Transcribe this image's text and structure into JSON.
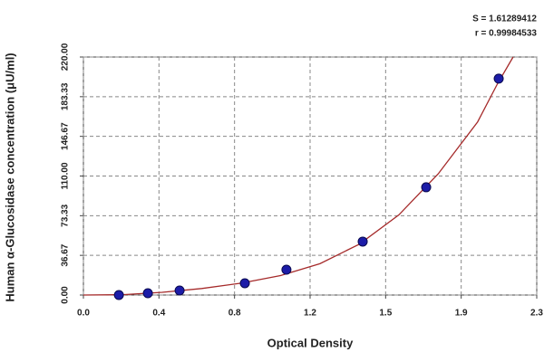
{
  "chart_data": {
    "type": "scatter",
    "x_label": "Optical Density",
    "y_label": "Human α-Glucosidase concentration (μU/ml)",
    "annotations": [
      "S = 1.61289412",
      "r = 0.99984533"
    ],
    "xlim": [
      0,
      2.3
    ],
    "xticks": [
      {
        "value": 0,
        "label": "0.0"
      },
      {
        "value": 0.3833,
        "label": "0.4"
      },
      {
        "value": 0.7667,
        "label": "0.8"
      },
      {
        "value": 1.15,
        "label": "1.2"
      },
      {
        "value": 1.5333,
        "label": "1.5"
      },
      {
        "value": 1.9167,
        "label": "1.9"
      },
      {
        "value": 2.3,
        "label": "2.3"
      }
    ],
    "ylim": [
      0,
      220
    ],
    "yticks": [
      {
        "value": 0,
        "label": "0.00"
      },
      {
        "value": 36.67,
        "label": "36.67"
      },
      {
        "value": 73.33,
        "label": "73.33"
      },
      {
        "value": 110,
        "label": "110.00"
      },
      {
        "value": 146.67,
        "label": "146.67"
      },
      {
        "value": 183.33,
        "label": "183.33"
      },
      {
        "value": 220,
        "label": "220.00"
      }
    ],
    "grid": true,
    "points": {
      "color": "#1c1ca8",
      "x": [
        0.18,
        0.327,
        0.488,
        0.819,
        1.03,
        1.417,
        1.739,
        2.107
      ],
      "values": [
        0,
        1.7,
        4.2,
        10.9,
        23.4,
        49.4,
        99.6,
        200
      ]
    },
    "curve": {
      "color": "#a52a2a",
      "x": [
        0,
        0.2,
        0.4,
        0.6,
        0.8,
        1.0,
        1.2,
        1.4,
        1.6,
        1.8,
        2.0,
        2.1,
        2.18
      ],
      "values": [
        0,
        0.3,
        2.5,
        6,
        11,
        18,
        29,
        47,
        74,
        112,
        160,
        195,
        220
      ]
    }
  }
}
